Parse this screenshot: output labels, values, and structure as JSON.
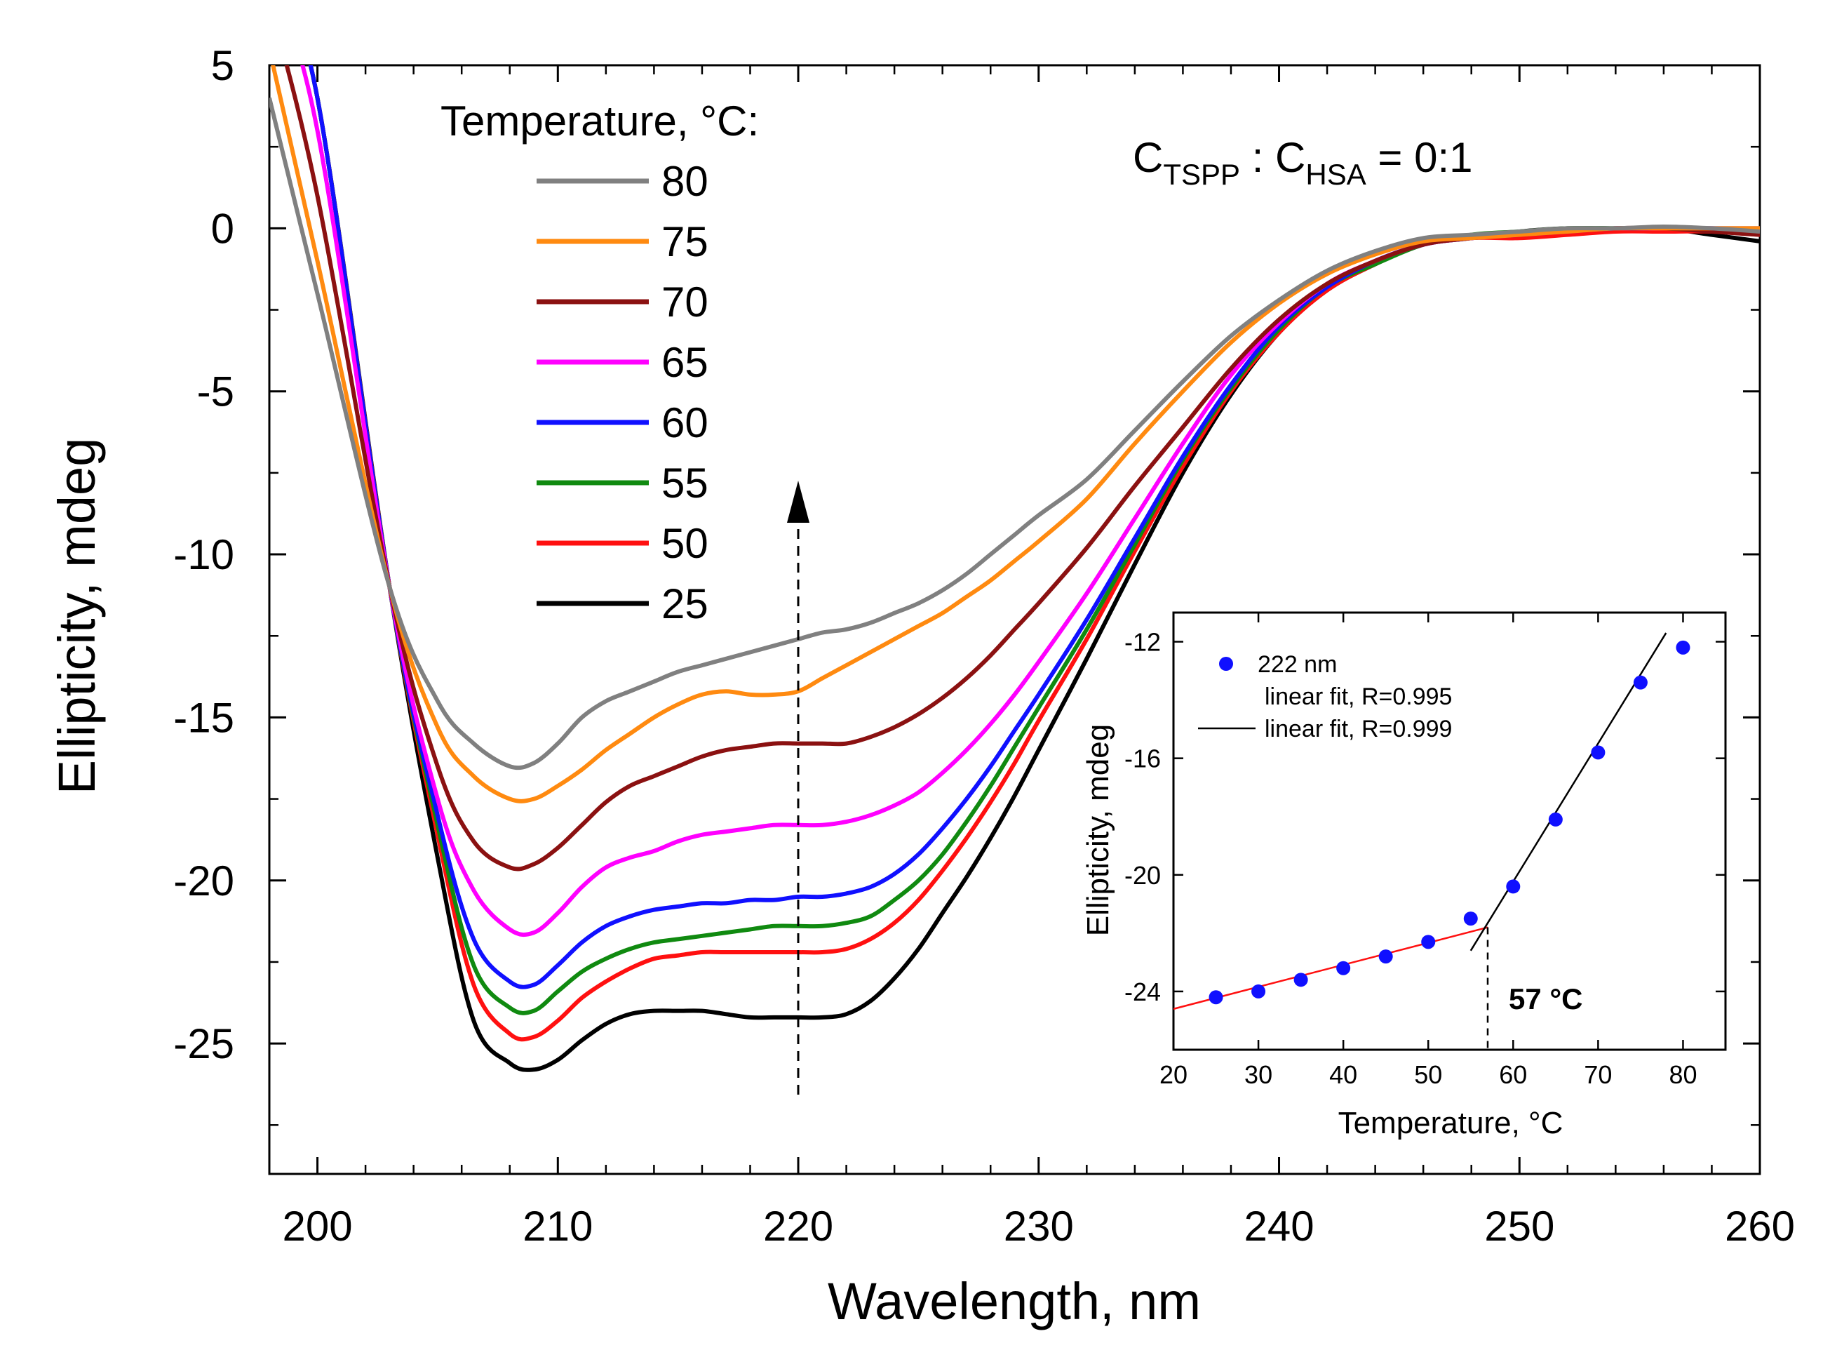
{
  "chart_data": [
    {
      "type": "line",
      "title": "",
      "xlabel": "Wavelength, nm",
      "ylabel": "Ellipticity, mdeg",
      "xlim": [
        198,
        260
      ],
      "ylim": [
        -29,
        5
      ],
      "xticks": [
        200,
        210,
        220,
        230,
        240,
        250,
        260
      ],
      "yticks": [
        5,
        0,
        -5,
        -10,
        -15,
        -20,
        -25
      ],
      "legend_title": "Temperature, °C:",
      "legend_position": "top-left",
      "annotation": {
        "main": "C",
        "sub1": "TSPP",
        "mid": " : C",
        "sub2": "HSA",
        "end": " = 0:1"
      },
      "x": [
        198,
        200,
        203,
        205,
        206.5,
        208,
        209,
        210,
        211,
        212,
        213,
        214,
        215,
        216,
        217,
        218,
        219,
        220,
        221,
        222,
        223,
        224,
        225,
        226,
        227,
        228,
        229,
        230,
        232,
        234,
        236,
        238,
        240,
        242,
        244,
        246,
        248,
        250,
        252,
        254,
        256,
        258,
        260
      ],
      "series": [
        {
          "name": "80",
          "color": "#808080",
          "values": [
            4.0,
            -2.0,
            -11.0,
            -14.5,
            -15.8,
            -16.5,
            -16.4,
            -15.8,
            -15.0,
            -14.5,
            -14.2,
            -13.9,
            -13.6,
            -13.4,
            -13.2,
            -13.0,
            -12.8,
            -12.6,
            -12.4,
            -12.3,
            -12.1,
            -11.8,
            -11.5,
            -11.1,
            -10.6,
            -10.0,
            -9.4,
            -8.8,
            -7.7,
            -6.2,
            -4.7,
            -3.3,
            -2.2,
            -1.3,
            -0.7,
            -0.3,
            -0.2,
            -0.1,
            0.0,
            0.0,
            0.05,
            0.0,
            -0.1
          ]
        },
        {
          "name": "75",
          "color": "#ff8a10",
          "values": [
            5.5,
            -1.0,
            -11.0,
            -15.3,
            -16.8,
            -17.5,
            -17.5,
            -17.1,
            -16.6,
            -16.0,
            -15.5,
            -15.0,
            -14.6,
            -14.3,
            -14.2,
            -14.3,
            -14.3,
            -14.2,
            -13.8,
            -13.4,
            -13.0,
            -12.6,
            -12.2,
            -11.8,
            -11.3,
            -10.8,
            -10.2,
            -9.6,
            -8.3,
            -6.6,
            -5.0,
            -3.5,
            -2.3,
            -1.4,
            -0.8,
            -0.4,
            -0.3,
            -0.2,
            -0.1,
            0.0,
            0.0,
            0.0,
            0.0
          ]
        },
        {
          "name": "70",
          "color": "#8b1111",
          "values": [
            7.0,
            1.0,
            -11.0,
            -16.5,
            -18.8,
            -19.6,
            -19.5,
            -19.0,
            -18.3,
            -17.6,
            -17.1,
            -16.8,
            -16.5,
            -16.2,
            -16.0,
            -15.9,
            -15.8,
            -15.8,
            -15.8,
            -15.8,
            -15.6,
            -15.3,
            -14.9,
            -14.4,
            -13.8,
            -13.1,
            -12.3,
            -11.5,
            -9.8,
            -7.9,
            -6.1,
            -4.3,
            -2.8,
            -1.7,
            -1.0,
            -0.5,
            -0.3,
            -0.2,
            -0.1,
            0.0,
            0.0,
            -0.1,
            -0.2
          ]
        },
        {
          "name": "65",
          "color": "#ff00ff",
          "values": [
            8.0,
            3.0,
            -11.0,
            -17.5,
            -20.3,
            -21.5,
            -21.6,
            -21.0,
            -20.2,
            -19.6,
            -19.3,
            -19.1,
            -18.8,
            -18.6,
            -18.5,
            -18.4,
            -18.3,
            -18.3,
            -18.3,
            -18.2,
            -18.0,
            -17.7,
            -17.3,
            -16.7,
            -16.0,
            -15.2,
            -14.3,
            -13.3,
            -11.2,
            -8.9,
            -6.6,
            -4.5,
            -2.9,
            -1.7,
            -1.0,
            -0.5,
            -0.3,
            -0.2,
            -0.1,
            0.0,
            0.0,
            0.0,
            0.0
          ]
        },
        {
          "name": "60",
          "color": "#1010ff",
          "values": [
            8.5,
            4.0,
            -11.0,
            -18.0,
            -21.8,
            -23.1,
            -23.2,
            -22.6,
            -21.9,
            -21.4,
            -21.1,
            -20.9,
            -20.8,
            -20.7,
            -20.7,
            -20.6,
            -20.6,
            -20.5,
            -20.5,
            -20.4,
            -20.2,
            -19.8,
            -19.2,
            -18.4,
            -17.5,
            -16.5,
            -15.4,
            -14.3,
            -12.0,
            -9.5,
            -7.0,
            -4.8,
            -3.0,
            -1.8,
            -1.0,
            -0.5,
            -0.3,
            -0.2,
            -0.1,
            0.0,
            0.0,
            0.0,
            -0.1
          ]
        },
        {
          "name": "55",
          "color": "#108a10",
          "values": [
            8.5,
            4.0,
            -11.0,
            -18.3,
            -22.6,
            -23.9,
            -24.0,
            -23.4,
            -22.8,
            -22.4,
            -22.1,
            -21.9,
            -21.8,
            -21.7,
            -21.6,
            -21.5,
            -21.4,
            -21.4,
            -21.4,
            -21.3,
            -21.1,
            -20.6,
            -20.0,
            -19.2,
            -18.2,
            -17.1,
            -15.9,
            -14.7,
            -12.3,
            -9.7,
            -7.1,
            -4.9,
            -3.1,
            -1.8,
            -1.1,
            -0.5,
            -0.2,
            -0.1,
            0.0,
            0.0,
            0.0,
            0.0,
            0.0
          ]
        },
        {
          "name": "50",
          "color": "#ff1010",
          "values": [
            8.5,
            4.0,
            -11.0,
            -18.6,
            -23.2,
            -24.7,
            -24.8,
            -24.3,
            -23.6,
            -23.1,
            -22.7,
            -22.4,
            -22.3,
            -22.2,
            -22.2,
            -22.2,
            -22.2,
            -22.2,
            -22.2,
            -22.1,
            -21.8,
            -21.3,
            -20.6,
            -19.7,
            -18.7,
            -17.6,
            -16.4,
            -15.1,
            -12.6,
            -9.9,
            -7.3,
            -5.0,
            -3.2,
            -1.9,
            -1.1,
            -0.5,
            -0.3,
            -0.3,
            -0.2,
            -0.1,
            -0.1,
            -0.1,
            -0.2
          ]
        },
        {
          "name": "25",
          "color": "#000000",
          "values": [
            8.5,
            4.0,
            -11.0,
            -19.3,
            -24.3,
            -25.6,
            -25.8,
            -25.5,
            -24.9,
            -24.4,
            -24.1,
            -24.0,
            -24.0,
            -24.0,
            -24.1,
            -24.2,
            -24.2,
            -24.2,
            -24.2,
            -24.1,
            -23.7,
            -23.0,
            -22.1,
            -21.0,
            -19.9,
            -18.7,
            -17.4,
            -16.0,
            -13.2,
            -10.3,
            -7.5,
            -5.1,
            -3.2,
            -1.9,
            -1.1,
            -0.5,
            -0.3,
            -0.1,
            0.0,
            0.0,
            0.0,
            -0.2,
            -0.4
          ]
        }
      ]
    },
    {
      "type": "scatter",
      "title": "",
      "xlabel": "Temperature, °C",
      "ylabel": "Ellipticity, mdeg",
      "xlim": [
        20,
        85
      ],
      "ylim": [
        -26,
        -11
      ],
      "xticks": [
        20,
        30,
        40,
        50,
        60,
        70,
        80
      ],
      "yticks": [
        -12,
        -16,
        -20,
        -24
      ],
      "legend_position": "top-left",
      "series": [
        {
          "name": "222 nm",
          "color": "#1010ff",
          "x": [
            25,
            30,
            35,
            40,
            45,
            50,
            55,
            60,
            65,
            70,
            75,
            80
          ],
          "values": [
            -24.2,
            -24.0,
            -23.6,
            -23.2,
            -22.8,
            -22.3,
            -21.5,
            -20.4,
            -18.1,
            -15.8,
            -13.4,
            -12.2
          ]
        },
        {
          "name": "linear fit, R=0.995",
          "color": "#ff1010",
          "x": [
            20,
            57
          ],
          "values": [
            -24.6,
            -21.8
          ]
        },
        {
          "name": "linear fit, R=0.999",
          "color": "#000000",
          "x": [
            55,
            78
          ],
          "values": [
            -22.6,
            -11.7
          ]
        }
      ],
      "annotation": "57 °C",
      "transition_x": 57
    }
  ]
}
